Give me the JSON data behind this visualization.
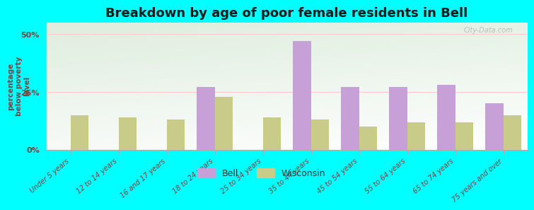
{
  "title": "Breakdown by age of poor female residents in Bell",
  "ylabel": "percentage\nbelow poverty\nlevel",
  "categories": [
    "Under 5 years",
    "12 to 14 years",
    "16 and 17 years",
    "18 to 24 years",
    "25 to 34 years",
    "35 to 44 years",
    "45 to 54 years",
    "55 to 64 years",
    "65 to 74 years",
    "75 years and over"
  ],
  "bell_values": [
    0,
    0,
    0,
    27.0,
    0,
    47.0,
    27.0,
    27.0,
    28.0,
    20.0
  ],
  "wisconsin_values": [
    15.0,
    14.0,
    13.0,
    23.0,
    14.0,
    13.0,
    10.0,
    12.0,
    12.0,
    15.0
  ],
  "bell_color": "#c8a0d8",
  "wisconsin_color": "#c8cc88",
  "background_color": "#00ffff",
  "title_color": "#1a1a1a",
  "axis_label_color": "#804040",
  "tick_label_color": "#804040",
  "ylim": [
    0,
    55
  ],
  "yticks": [
    0,
    25,
    50
  ],
  "ytick_labels": [
    "0%",
    "25%",
    "50%"
  ],
  "watermark": "City-Data.com",
  "bar_width": 0.38
}
